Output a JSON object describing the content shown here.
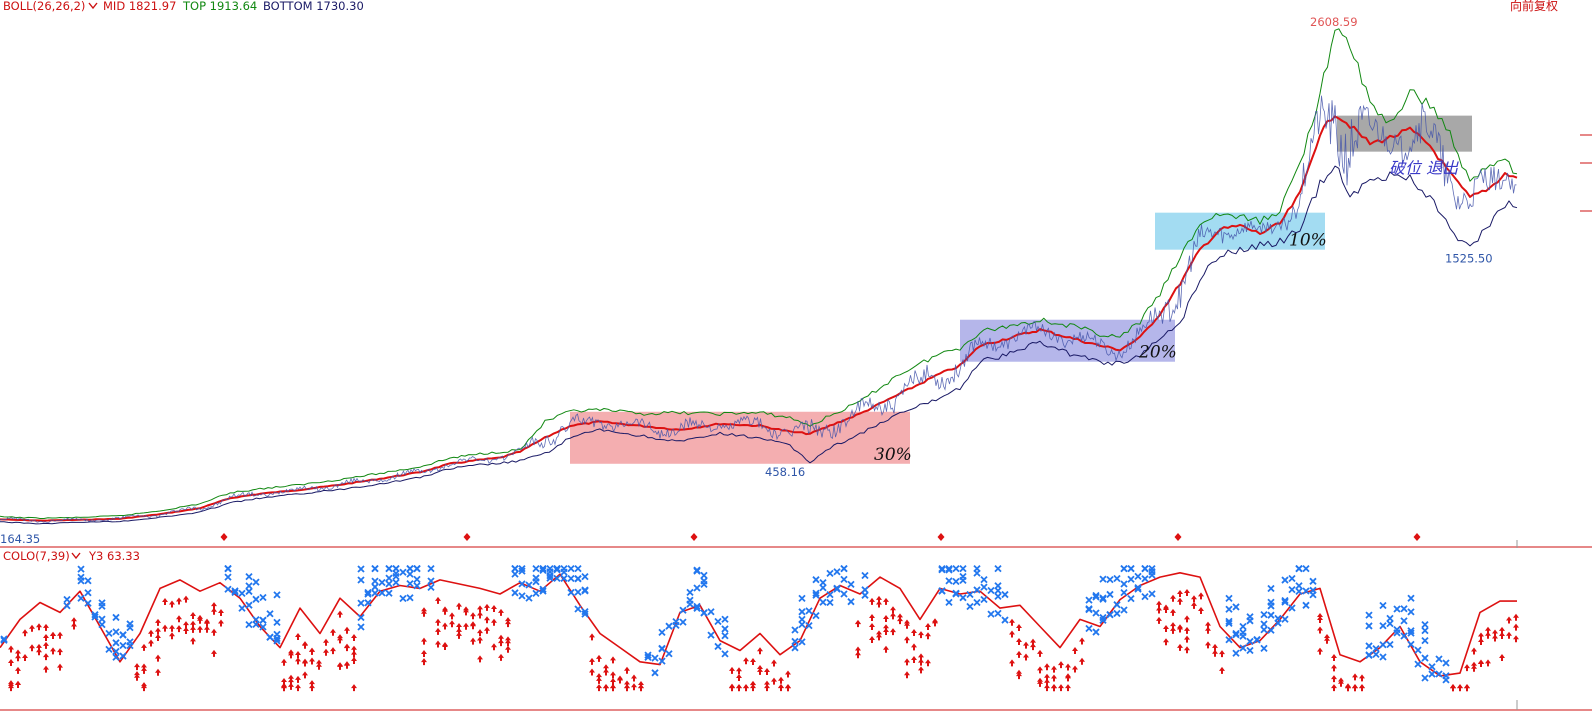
{
  "top_panel": {
    "legend": {
      "name": "BOLL(26,26,2)",
      "dropdown_icon": "chevron-down-icon",
      "mid": "MID 1821.97",
      "top": "TOP 1913.64",
      "bottom": "BOTTOM 1730.30"
    },
    "adjust_label": "向前复权"
  },
  "bottom_panel": {
    "legend": {
      "name": "COLO(7,39)",
      "dropdown_icon": "chevron-down-icon",
      "y3": "Y3 63.33"
    }
  },
  "colors": {
    "mid": "#dd1111",
    "top": "#118811",
    "bottom": "#1a1a66",
    "price": "#4455aa",
    "up_marker": "#dd1111",
    "down_marker": "#2277ee",
    "zone_red": "#f4aeb0",
    "zone_purple": "#b5b6ea",
    "zone_cyan": "#a3dcf2",
    "zone_gray": "#a8a8a8"
  },
  "chart_data": [
    {
      "type": "line",
      "indicator": "BOLL(26,26,2)",
      "series": [
        {
          "name": "MID",
          "points": [
            [
              0,
              172
            ],
            [
              40,
              166
            ],
            [
              80,
              170
            ],
            [
              120,
              175
            ],
            [
              160,
              198
            ],
            [
              200,
              228
            ],
            [
              230,
              278
            ],
            [
              260,
              300
            ],
            [
              300,
              320
            ],
            [
              340,
              345
            ],
            [
              380,
              375
            ],
            [
              420,
              408
            ],
            [
              450,
              450
            ],
            [
              480,
              470
            ],
            [
              500,
              480
            ],
            [
              520,
              510
            ],
            [
              545,
              580
            ],
            [
              570,
              640
            ],
            [
              600,
              660
            ],
            [
              640,
              640
            ],
            [
              680,
              620
            ],
            [
              720,
              650
            ],
            [
              760,
              640
            ],
            [
              790,
              610
            ],
            [
              810,
              600
            ],
            [
              830,
              640
            ],
            [
              860,
              700
            ],
            [
              900,
              800
            ],
            [
              940,
              900
            ],
            [
              960,
              940
            ],
            [
              980,
              1040
            ],
            [
              1010,
              1080
            ],
            [
              1040,
              1120
            ],
            [
              1070,
              1080
            ],
            [
              1100,
              1040
            ],
            [
              1120,
              1020
            ],
            [
              1140,
              1080
            ],
            [
              1160,
              1200
            ],
            [
              1180,
              1350
            ],
            [
              1200,
              1520
            ],
            [
              1220,
              1620
            ],
            [
              1240,
              1640
            ],
            [
              1260,
              1600
            ],
            [
              1280,
              1650
            ],
            [
              1300,
              1800
            ],
            [
              1320,
              2100
            ],
            [
              1335,
              2200
            ],
            [
              1350,
              2140
            ],
            [
              1370,
              2050
            ],
            [
              1390,
              2080
            ],
            [
              1410,
              2120
            ],
            [
              1430,
              2040
            ],
            [
              1450,
              1900
            ],
            [
              1470,
              1780
            ],
            [
              1490,
              1830
            ],
            [
              1505,
              1900
            ],
            [
              1517,
              1880
            ]
          ]
        },
        {
          "name": "TOP",
          "points": [
            [
              0,
              185
            ],
            [
              40,
              178
            ],
            [
              80,
              182
            ],
            [
              120,
              190
            ],
            [
              160,
              215
            ],
            [
              200,
              250
            ],
            [
              230,
              305
            ],
            [
              260,
              325
            ],
            [
              300,
              345
            ],
            [
              340,
              372
            ],
            [
              380,
              402
            ],
            [
              420,
              435
            ],
            [
              450,
              478
            ],
            [
              480,
              500
            ],
            [
              500,
              510
            ],
            [
              520,
              520
            ],
            [
              545,
              660
            ],
            [
              570,
              710
            ],
            [
              600,
              720
            ],
            [
              640,
              700
            ],
            [
              680,
              705
            ],
            [
              720,
              700
            ],
            [
              760,
              705
            ],
            [
              790,
              680
            ],
            [
              810,
              640
            ],
            [
              830,
              690
            ],
            [
              860,
              760
            ],
            [
              900,
              900
            ],
            [
              940,
              1000
            ],
            [
              960,
              1030
            ],
            [
              980,
              1110
            ],
            [
              1010,
              1140
            ],
            [
              1040,
              1170
            ],
            [
              1070,
              1140
            ],
            [
              1100,
              1100
            ],
            [
              1120,
              1080
            ],
            [
              1140,
              1160
            ],
            [
              1160,
              1300
            ],
            [
              1180,
              1480
            ],
            [
              1200,
              1650
            ],
            [
              1220,
              1700
            ],
            [
              1240,
              1680
            ],
            [
              1260,
              1660
            ],
            [
              1280,
              1720
            ],
            [
              1300,
              1950
            ],
            [
              1320,
              2300
            ],
            [
              1335,
              2608
            ],
            [
              1350,
              2550
            ],
            [
              1370,
              2250
            ],
            [
              1390,
              2150
            ],
            [
              1410,
              2300
            ],
            [
              1430,
              2250
            ],
            [
              1450,
              2100
            ],
            [
              1470,
              1850
            ],
            [
              1490,
              1950
            ],
            [
              1505,
              1980
            ],
            [
              1517,
              1900
            ]
          ]
        },
        {
          "name": "BOTTOM",
          "points": [
            [
              0,
              160
            ],
            [
              40,
              150
            ],
            [
              80,
              158
            ],
            [
              120,
              162
            ],
            [
              160,
              182
            ],
            [
              200,
              208
            ],
            [
              230,
              255
            ],
            [
              260,
              278
            ],
            [
              300,
              300
            ],
            [
              340,
              322
            ],
            [
              380,
              350
            ],
            [
              420,
              382
            ],
            [
              450,
              425
            ],
            [
              480,
              445
            ],
            [
              500,
              452
            ],
            [
              520,
              465
            ],
            [
              545,
              500
            ],
            [
              570,
              580
            ],
            [
              600,
              620
            ],
            [
              640,
              590
            ],
            [
              680,
              560
            ],
            [
              720,
              600
            ],
            [
              760,
              580
            ],
            [
              790,
              540
            ],
            [
              810,
              458
            ],
            [
              830,
              530
            ],
            [
              860,
              600
            ],
            [
              900,
              700
            ],
            [
              940,
              780
            ],
            [
              960,
              830
            ],
            [
              980,
              960
            ],
            [
              1010,
              1000
            ],
            [
              1040,
              1060
            ],
            [
              1070,
              1000
            ],
            [
              1100,
              960
            ],
            [
              1120,
              950
            ],
            [
              1140,
              990
            ],
            [
              1160,
              1080
            ],
            [
              1180,
              1150
            ],
            [
              1200,
              1380
            ],
            [
              1220,
              1500
            ],
            [
              1240,
              1520
            ],
            [
              1260,
              1540
            ],
            [
              1280,
              1560
            ],
            [
              1300,
              1620
            ],
            [
              1320,
              1850
            ],
            [
              1335,
              1950
            ],
            [
              1350,
              1800
            ],
            [
              1370,
              1850
            ],
            [
              1390,
              1900
            ],
            [
              1410,
              1880
            ],
            [
              1430,
              1780
            ],
            [
              1450,
              1620
            ],
            [
              1470,
              1525
            ],
            [
              1490,
              1650
            ],
            [
              1505,
              1750
            ],
            [
              1517,
              1730
            ]
          ]
        }
      ],
      "labels": [
        {
          "text": "2608.59",
          "x": 1335,
          "y": 2608,
          "kind": "high"
        },
        {
          "text": "458.16",
          "x": 790,
          "y": 458,
          "kind": "low"
        },
        {
          "text": "1525.50",
          "x": 1470,
          "y": 1525,
          "kind": "low"
        },
        {
          "text": "164.35",
          "x": 4,
          "y": 164,
          "kind": "low"
        }
      ],
      "zones": [
        {
          "label": "30%",
          "x": [
            570,
            910
          ],
          "y": [
            450,
            710
          ],
          "color": "zone_red"
        },
        {
          "label": "20%",
          "x": [
            960,
            1175
          ],
          "y": [
            960,
            1170
          ],
          "color": "zone_purple"
        },
        {
          "label": "10%",
          "x": [
            1155,
            1325
          ],
          "y": [
            1520,
            1705
          ],
          "color": "zone_cyan"
        },
        {
          "label": "破位 退出",
          "x": [
            1337,
            1472
          ],
          "y": [
            2010,
            2190
          ],
          "color": "zone_gray"
        }
      ],
      "markers": [
        224,
        467,
        694,
        941,
        1178,
        1417
      ]
    },
    {
      "type": "line",
      "indicator": "COLO(7,39)",
      "series": [
        {
          "name": "Y3",
          "points": [
            [
              0,
              30
            ],
            [
              20,
              50
            ],
            [
              40,
              62
            ],
            [
              60,
              55
            ],
            [
              80,
              70
            ],
            [
              100,
              45
            ],
            [
              120,
              20
            ],
            [
              140,
              40
            ],
            [
              160,
              72
            ],
            [
              180,
              78
            ],
            [
              200,
              70
            ],
            [
              220,
              76
            ],
            [
              240,
              65
            ],
            [
              260,
              45
            ],
            [
              280,
              30
            ],
            [
              300,
              58
            ],
            [
              320,
              40
            ],
            [
              340,
              65
            ],
            [
              360,
              52
            ],
            [
              380,
              70
            ],
            [
              400,
              74
            ],
            [
              420,
              72
            ],
            [
              440,
              78
            ],
            [
              460,
              75
            ],
            [
              480,
              72
            ],
            [
              500,
              68
            ],
            [
              520,
              76
            ],
            [
              540,
              70
            ],
            [
              560,
              82
            ],
            [
              580,
              60
            ],
            [
              600,
              40
            ],
            [
              620,
              30
            ],
            [
              640,
              20
            ],
            [
              660,
              18
            ],
            [
              680,
              55
            ],
            [
              700,
              60
            ],
            [
              720,
              35
            ],
            [
              740,
              28
            ],
            [
              760,
              40
            ],
            [
              780,
              25
            ],
            [
              800,
              35
            ],
            [
              820,
              65
            ],
            [
              840,
              74
            ],
            [
              860,
              68
            ],
            [
              880,
              80
            ],
            [
              900,
              72
            ],
            [
              920,
              50
            ],
            [
              940,
              72
            ],
            [
              960,
              68
            ],
            [
              980,
              70
            ],
            [
              1000,
              58
            ],
            [
              1020,
              60
            ],
            [
              1040,
              45
            ],
            [
              1060,
              30
            ],
            [
              1080,
              50
            ],
            [
              1100,
              45
            ],
            [
              1120,
              64
            ],
            [
              1140,
              74
            ],
            [
              1160,
              80
            ],
            [
              1180,
              83
            ],
            [
              1200,
              80
            ],
            [
              1220,
              45
            ],
            [
              1240,
              30
            ],
            [
              1260,
              35
            ],
            [
              1280,
              50
            ],
            [
              1300,
              68
            ],
            [
              1320,
              72
            ],
            [
              1340,
              25
            ],
            [
              1360,
              20
            ],
            [
              1380,
              30
            ],
            [
              1400,
              45
            ],
            [
              1420,
              20
            ],
            [
              1440,
              10
            ],
            [
              1460,
              12
            ],
            [
              1480,
              55
            ],
            [
              1500,
              63
            ],
            [
              1517,
              63
            ]
          ]
        }
      ],
      "signals": "up and down markers above/below threshold"
    }
  ]
}
